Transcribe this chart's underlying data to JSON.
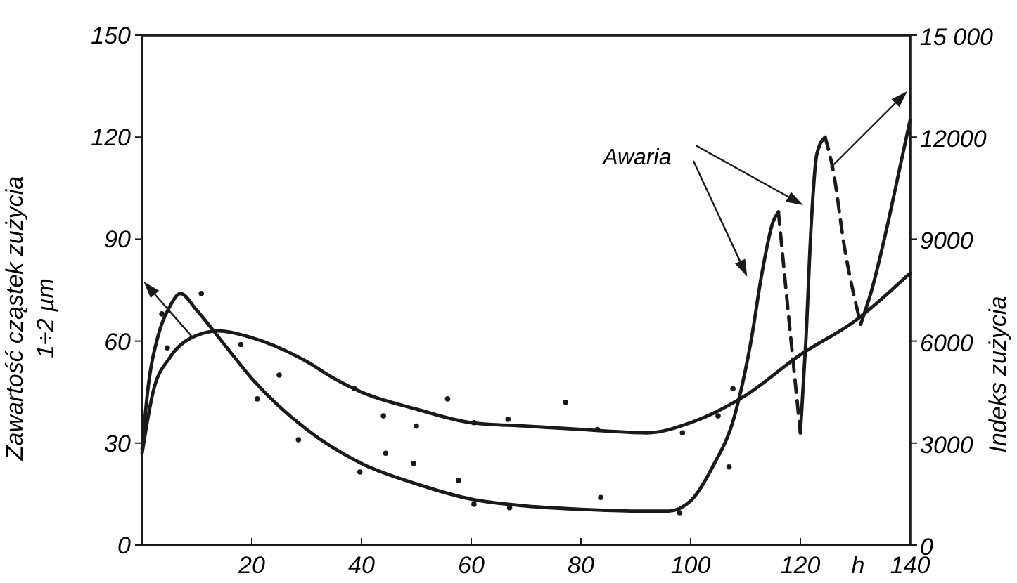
{
  "chart_data": {
    "type": "line",
    "xlabel": "h",
    "ylabel": "Zawartość cząstek zużycia\n1÷2 µm",
    "y2label": "Indeks zużycia",
    "xlim": [
      0,
      140
    ],
    "xticks": [
      20,
      40,
      60,
      80,
      100,
      120,
      140
    ],
    "ylim": [
      0,
      150
    ],
    "yticks": [
      0,
      30,
      60,
      90,
      120,
      150
    ],
    "y2lim": [
      0,
      15000
    ],
    "y2ticks": [
      0,
      3000,
      6000,
      9000,
      12000,
      {
        "value": 15000,
        "label": "15 000"
      }
    ],
    "grid": false,
    "annotations": [
      "Awaria"
    ],
    "series": [
      {
        "color": "#1a1a1a",
        "line_style": "solid",
        "marker": "none",
        "x": [
          0,
          2,
          5,
          9,
          14,
          20,
          30,
          35,
          40,
          50,
          60,
          70,
          80,
          92,
          100,
          110,
          120,
          130,
          140
        ],
        "values": [
          27,
          45,
          55,
          61,
          63,
          61,
          54,
          49,
          45,
          40,
          36,
          35,
          34,
          33,
          36,
          44,
          56,
          66,
          80
        ]
      },
      {
        "axis": "y2",
        "color": "#1a1a1a",
        "line_style": "solid",
        "marker": "none",
        "x": [
          0,
          1,
          3,
          5,
          7,
          10,
          15,
          20,
          30,
          40,
          50,
          60,
          70,
          80,
          90,
          96,
          100,
          104,
          108,
          111,
          113,
          115,
          116
        ],
        "values": [
          2800,
          4500,
          6200,
          7000,
          7400,
          6900,
          5900,
          4900,
          3400,
          2400,
          1800,
          1350,
          1150,
          1050,
          1000,
          1000,
          1300,
          2300,
          3800,
          6000,
          8000,
          9500,
          9800
        ]
      },
      {
        "axis": "y2",
        "color": "#1a1a1a",
        "line_style": "dashed",
        "marker": "none",
        "x": [
          116,
          118,
          120
        ],
        "values": [
          9800,
          6500,
          3300
        ]
      },
      {
        "axis": "y2",
        "color": "#1a1a1a",
        "line_style": "solid",
        "marker": "none",
        "x": [
          120,
          121,
          122,
          123,
          124.5
        ],
        "values": [
          3300,
          6000,
          9500,
          11500,
          12000
        ]
      },
      {
        "axis": "y2",
        "color": "#1a1a1a",
        "line_style": "dashed",
        "marker": "none",
        "x": [
          124.5,
          126,
          128,
          131
        ],
        "values": [
          12000,
          11000,
          8800,
          6500
        ]
      },
      {
        "axis": "y2",
        "color": "#1a1a1a",
        "line_style": "solid",
        "marker": "none",
        "x": [
          131,
          133,
          136,
          138,
          140
        ],
        "values": [
          6500,
          7500,
          9500,
          11000,
          12500
        ]
      },
      {
        "type": "scatter",
        "color": "#1a1a1a",
        "marker": "circle",
        "x": [
          3.6,
          4.6,
          10.8,
          18,
          25,
          21,
          28.5,
          38.7,
          44,
          44.4,
          39.7,
          49.5,
          50,
          55.7,
          57.7,
          60.5,
          60.5,
          66.7,
          67,
          77.2,
          83,
          83.6,
          98.5,
          98,
          105,
          107.7,
          107
        ],
        "values": [
          68,
          58,
          74,
          59,
          50,
          43,
          31,
          46,
          38,
          27,
          21.5,
          24,
          35,
          43,
          19,
          36,
          12,
          37,
          11,
          42,
          34,
          14,
          33,
          9.5,
          38,
          46,
          23
        ]
      }
    ]
  }
}
